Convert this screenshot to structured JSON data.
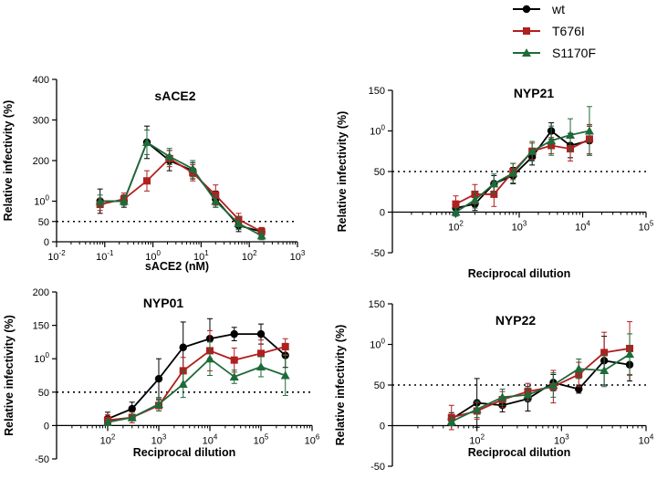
{
  "legend": [
    {
      "name": "wt",
      "color": "#000000",
      "marker": "circle"
    },
    {
      "name": "T676I",
      "color": "#b11f1f",
      "marker": "square"
    },
    {
      "name": "S1170F",
      "color": "#1e6b3a",
      "marker": "triangle"
    }
  ],
  "chart_data": [
    {
      "type": "line",
      "title": "sACE2",
      "xlabel": "sACE2 (nM)",
      "ylabel": "Relative infectivity (%)",
      "xscale": "log",
      "xlim": [
        0.01,
        1000
      ],
      "ylim": [
        0,
        400
      ],
      "xticks": [
        0.01,
        0.1,
        1,
        10,
        100,
        1000
      ],
      "xtick_labels": [
        "10-2",
        "10-1",
        "100",
        "101",
        "102",
        "103"
      ],
      "yticks": [
        0,
        50,
        100,
        200,
        300,
        400
      ],
      "ytick_labels": [
        "0",
        "50",
        "100",
        "200",
        "300",
        "400"
      ],
      "reference_line": 50,
      "x": [
        0.08,
        0.25,
        0.75,
        2.2,
        6.7,
        20,
        60,
        180
      ],
      "series": [
        {
          "name": "wt",
          "values": [
            100,
            100,
            245,
            200,
            175,
            105,
            40,
            25
          ],
          "err": [
            30,
            15,
            40,
            25,
            20,
            20,
            15,
            10
          ]
        },
        {
          "name": "T676I",
          "values": [
            92,
            105,
            150,
            205,
            170,
            115,
            55,
            25
          ],
          "err": [
            15,
            15,
            25,
            20,
            20,
            25,
            15,
            10
          ]
        },
        {
          "name": "S1170F",
          "values": [
            100,
            100,
            245,
            210,
            180,
            100,
            45,
            15
          ],
          "err": [
            15,
            10,
            30,
            20,
            20,
            15,
            15,
            10
          ]
        }
      ]
    },
    {
      "type": "line",
      "title": "NYP21",
      "xlabel": "Reciprocal dilution",
      "ylabel": "Relative infectivity (%)",
      "xscale": "log",
      "xlim": [
        10,
        100000
      ],
      "ylim": [
        -50,
        150
      ],
      "xticks": [
        100,
        1000,
        10000,
        100000
      ],
      "xtick_labels": [
        "102",
        "103",
        "104",
        "105"
      ],
      "yticks": [
        -50,
        0,
        50,
        100,
        150
      ],
      "ytick_labels": [
        "-50",
        "0",
        "50",
        "100",
        "150"
      ],
      "reference_line": 50,
      "x": [
        100,
        200,
        400,
        800,
        1600,
        3200,
        6400,
        12800
      ],
      "series": [
        {
          "name": "wt",
          "values": [
            5,
            10,
            35,
            45,
            68,
            100,
            82,
            88
          ],
          "err": [
            8,
            8,
            10,
            10,
            10,
            10,
            15,
            18
          ]
        },
        {
          "name": "T676I",
          "values": [
            10,
            22,
            22,
            50,
            75,
            82,
            78,
            90
          ],
          "err": [
            10,
            12,
            15,
            10,
            10,
            10,
            15,
            18
          ]
        },
        {
          "name": "S1170F",
          "values": [
            0,
            15,
            35,
            48,
            75,
            88,
            95,
            100
          ],
          "err": [
            5,
            10,
            12,
            12,
            12,
            18,
            20,
            30
          ]
        }
      ]
    },
    {
      "type": "line",
      "title": "NYP01",
      "xlabel": "Reciprocal dilution",
      "ylabel": "Relative infectivity (%)",
      "xscale": "log",
      "xlim": [
        10,
        1000000
      ],
      "ylim": [
        -50,
        200
      ],
      "xticks": [
        100,
        1000,
        10000,
        100000,
        1000000
      ],
      "xtick_labels": [
        "102",
        "103",
        "104",
        "105",
        "106"
      ],
      "yticks": [
        -50,
        0,
        50,
        100,
        150,
        200
      ],
      "ytick_labels": [
        "-50",
        "0",
        "50",
        "100",
        "150",
        "200"
      ],
      "reference_line": 50,
      "x": [
        100,
        300,
        1000,
        3000,
        10000,
        30000,
        100000,
        300000
      ],
      "series": [
        {
          "name": "wt",
          "values": [
            10,
            25,
            70,
            117,
            130,
            137,
            137,
            105
          ],
          "err": [
            10,
            10,
            30,
            38,
            30,
            10,
            15,
            18
          ]
        },
        {
          "name": "T676I",
          "values": [
            8,
            12,
            30,
            82,
            112,
            98,
            108,
            118
          ],
          "err": [
            8,
            8,
            8,
            20,
            30,
            18,
            20,
            12
          ]
        },
        {
          "name": "S1170F",
          "values": [
            5,
            12,
            32,
            62,
            100,
            73,
            88,
            75
          ],
          "err": [
            5,
            5,
            10,
            20,
            25,
            10,
            15,
            30
          ]
        }
      ]
    },
    {
      "type": "line",
      "title": "NYP22",
      "xlabel": "Reciprocal dilution",
      "ylabel": "Relative infectivity (%)",
      "xscale": "log",
      "xlim": [
        10,
        10000
      ],
      "ylim": [
        -50,
        150
      ],
      "xticks": [
        100,
        1000,
        10000
      ],
      "xtick_labels": [
        "102",
        "103",
        "104"
      ],
      "yticks": [
        -50,
        0,
        50,
        100,
        150
      ],
      "ytick_labels": [
        "-50",
        "0",
        "50",
        "100",
        "150"
      ],
      "reference_line": 50,
      "x": [
        50,
        100,
        200,
        400,
        800,
        1600,
        3200,
        6400
      ],
      "series": [
        {
          "name": "wt",
          "values": [
            8,
            28,
            25,
            33,
            53,
            45,
            80,
            75
          ],
          "err": [
            8,
            30,
            8,
            15,
            10,
            5,
            30,
            20
          ]
        },
        {
          "name": "T676I",
          "values": [
            10,
            18,
            32,
            42,
            48,
            63,
            90,
            95
          ],
          "err": [
            15,
            10,
            10,
            10,
            20,
            15,
            25,
            33
          ]
        },
        {
          "name": "S1170F",
          "values": [
            5,
            20,
            35,
            38,
            50,
            70,
            68,
            88
          ],
          "err": [
            5,
            10,
            10,
            8,
            15,
            12,
            20,
            25
          ]
        }
      ]
    }
  ]
}
